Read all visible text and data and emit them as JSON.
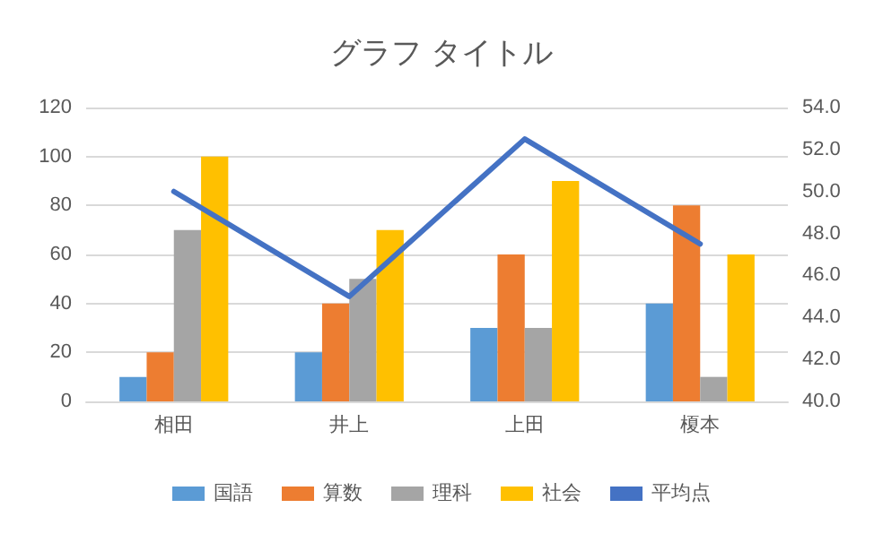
{
  "chart_data": {
    "type": "bar",
    "title": "グラフ タイトル",
    "categories": [
      "相田",
      "井上",
      "上田",
      "榎本"
    ],
    "series": [
      {
        "name": "国語",
        "color": "#5b9bd5",
        "values": [
          10,
          20,
          30,
          40
        ]
      },
      {
        "name": "算数",
        "color": "#ed7d31",
        "values": [
          20,
          40,
          60,
          80
        ]
      },
      {
        "name": "理科",
        "color": "#a5a5a5",
        "values": [
          70,
          50,
          30,
          10
        ]
      },
      {
        "name": "社会",
        "color": "#ffc000",
        "values": [
          100,
          70,
          90,
          60
        ]
      },
      {
        "name": "平均点",
        "type": "line",
        "axis": "y2",
        "color": "#4472c4",
        "values": [
          50,
          45,
          52.5,
          47.5
        ]
      }
    ],
    "ylim": [
      0,
      120
    ],
    "yticks": [
      0,
      20,
      40,
      60,
      80,
      100,
      120
    ],
    "y2lim": [
      40,
      54
    ],
    "y2ticks": [
      {
        "value": 40,
        "label": "40.0"
      },
      {
        "value": 42,
        "label": "42.0"
      },
      {
        "value": 44,
        "label": "44.0"
      },
      {
        "value": 46,
        "label": "46.0"
      },
      {
        "value": 48,
        "label": "48.0"
      },
      {
        "value": 50,
        "label": "50.0"
      },
      {
        "value": 52,
        "label": "52.0"
      },
      {
        "value": 54,
        "label": "54.0"
      }
    ],
    "grid": "y",
    "legend": "bottom",
    "marker": "none",
    "line_style": "solid"
  }
}
